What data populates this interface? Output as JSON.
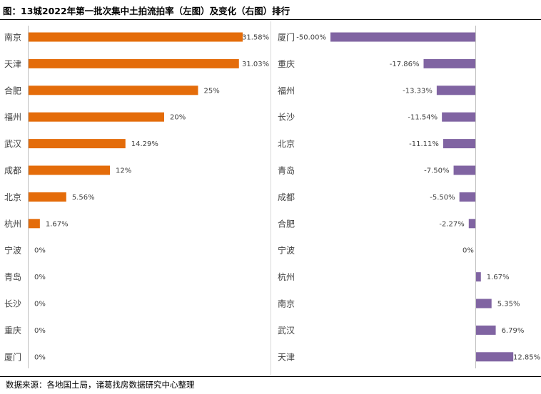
{
  "title": "图：13城2022年第一批次集中土拍流拍率（左图）及变化（右图）排行",
  "source": "数据来源：各地国土局，诸葛找房数据研究中心整理",
  "colors": {
    "left_bar": "#E46C0A",
    "right_bar": "#8064A2",
    "axis": "#BFBFBF",
    "text": "#404040"
  },
  "chart_data": [
    {
      "type": "bar",
      "orientation": "horizontal",
      "categories": [
        "南京",
        "天津",
        "合肥",
        "福州",
        "武汉",
        "成都",
        "北京",
        "杭州",
        "宁波",
        "青岛",
        "长沙",
        "重庆",
        "厦门"
      ],
      "values": [
        31.58,
        31.03,
        25,
        20,
        14.29,
        12,
        5.56,
        1.67,
        0,
        0,
        0,
        0,
        0
      ],
      "labels": [
        "31.58%",
        "31.03%",
        "25%",
        "20%",
        "14.29%",
        "12%",
        "5.56%",
        "1.67%",
        "0%",
        "0%",
        "0%",
        "0%",
        "0%"
      ],
      "xlim": [
        0,
        35
      ]
    },
    {
      "type": "bar",
      "orientation": "horizontal",
      "categories": [
        "厦门",
        "重庆",
        "福州",
        "长沙",
        "北京",
        "青岛",
        "成都",
        "合肥",
        "宁波",
        "杭州",
        "南京",
        "武汉",
        "天津"
      ],
      "values": [
        -50.0,
        -17.86,
        -13.33,
        -11.54,
        -11.11,
        -7.5,
        -5.5,
        -2.27,
        0,
        1.67,
        5.35,
        6.79,
        12.85
      ],
      "labels": [
        "-50.00%",
        "-17.86%",
        "-13.33%",
        "-11.54%",
        "-11.11%",
        "-7.50%",
        "-5.50%",
        "-2.27%",
        "0%",
        "1.67%",
        "5.35%",
        "6.79%",
        "12.85%"
      ],
      "xlim": [
        -50,
        13
      ]
    }
  ]
}
